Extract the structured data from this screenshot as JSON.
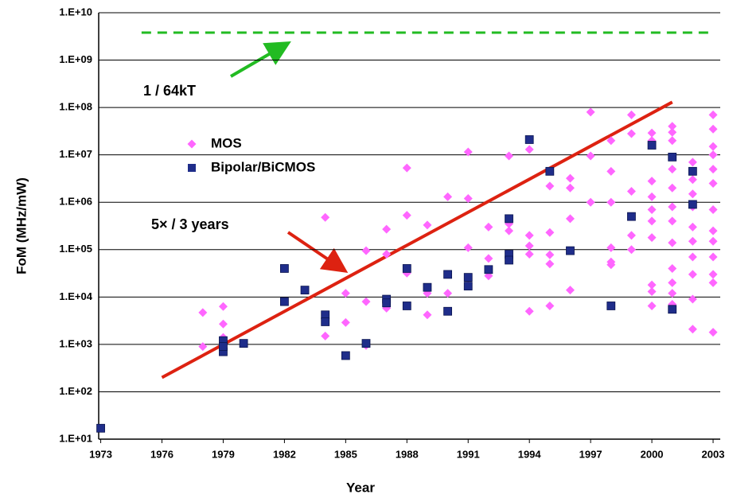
{
  "chart_data": {
    "type": "scatter",
    "xlabel": "Year",
    "ylabel": "FoM (MHz/mW)",
    "xlim": [
      1972.9,
      2003.35
    ],
    "ylim": [
      10,
      10000000000
    ],
    "ylog": true,
    "grid": true,
    "xticks": [
      1973,
      1976,
      1979,
      1982,
      1985,
      1988,
      1991,
      1994,
      1997,
      2000,
      2003
    ],
    "yticks": [
      {
        "value": 10,
        "label": "1.E+01"
      },
      {
        "value": 100,
        "label": "1.E+02"
      },
      {
        "value": 1000,
        "label": "1.E+03"
      },
      {
        "value": 10000,
        "label": "1.E+04"
      },
      {
        "value": 100000,
        "label": "1.E+05"
      },
      {
        "value": 1000000,
        "label": "1.E+06"
      },
      {
        "value": 10000000,
        "label": "1.E+07"
      },
      {
        "value": 100000000,
        "label": "1.E+08"
      },
      {
        "value": 1000000000,
        "label": "1.E+09"
      },
      {
        "value": 10000000000,
        "label": "1.E+10"
      }
    ],
    "series": [
      {
        "name": "MOS",
        "color": "#ff66ff",
        "marker": "diamond",
        "x": [
          1978,
          1978,
          1979,
          1979,
          1979,
          1979,
          1984,
          1984,
          1985,
          1985,
          1986,
          1986,
          1986,
          1987,
          1987,
          1987,
          1988,
          1988,
          1988,
          1988,
          1989,
          1989,
          1989,
          1990,
          1990,
          1991,
          1991,
          1991,
          1991,
          1992,
          1992,
          1992,
          1993,
          1993,
          1993,
          1994,
          1994,
          1994,
          1994,
          1994,
          1995,
          1995,
          1995,
          1995,
          1995,
          1996,
          1996,
          1996,
          1996,
          1997,
          1997,
          1997,
          1998,
          1998,
          1998,
          1998,
          1998,
          1998,
          1998,
          1999,
          1999,
          1999,
          1999,
          1999,
          2000,
          2000,
          2000,
          2000,
          2000,
          2000,
          2000,
          2000,
          2000,
          2000,
          2001,
          2001,
          2001,
          2001,
          2001,
          2001,
          2001,
          2001,
          2001,
          2001,
          2001,
          2001,
          2001,
          2002,
          2002,
          2002,
          2002,
          2002,
          2002,
          2002,
          2002,
          2002,
          2002,
          2003,
          2003,
          2003,
          2003,
          2003,
          2003,
          2003,
          2003,
          2003,
          2003,
          2003,
          2003,
          2003
        ],
        "values": [
          4700,
          900,
          6300,
          2700,
          1400,
          900,
          480000,
          1500,
          12000,
          2900,
          95000,
          8000,
          950,
          270000,
          80000,
          5800,
          5300000,
          530000,
          32000,
          6500,
          330000,
          12000,
          4200,
          1300000,
          12000,
          11500000,
          1200000,
          110000,
          25000,
          300000,
          65000,
          28000,
          9500000,
          350000,
          250000,
          13000000,
          200000,
          120000,
          80000,
          5000,
          2200000,
          230000,
          78000,
          50000,
          6500,
          3200000,
          2000000,
          450000,
          14000,
          80000000,
          9500000,
          1000000,
          20000000,
          4500000,
          1000000,
          110000,
          55000,
          48000,
          6500,
          70000000,
          28000000,
          1700000,
          200000,
          100000,
          29000000,
          20000000,
          2800000,
          1300000,
          700000,
          400000,
          180000,
          18000,
          13000,
          6500,
          40000000,
          30000000,
          20000000,
          9000000,
          5000000,
          2000000,
          800000,
          400000,
          140000,
          40000,
          20000,
          12000,
          7000,
          7000000,
          3000000,
          1500000,
          800000,
          300000,
          150000,
          70000,
          30000,
          9000,
          2100,
          70000000,
          35000000,
          15000000,
          10000000,
          5000000,
          2500000,
          700000,
          250000,
          150000,
          70000,
          30000,
          20000,
          1800
        ]
      },
      {
        "name": "Bipolar/BiCMOS",
        "color": "#1f2d8a",
        "marker": "square",
        "x": [
          1973,
          1979,
          1979,
          1979,
          1980,
          1982,
          1982,
          1983,
          1984,
          1984,
          1985,
          1986,
          1987,
          1987,
          1988,
          1988,
          1989,
          1990,
          1990,
          1991,
          1991,
          1992,
          1993,
          1993,
          1993,
          1994,
          1995,
          1996,
          1998,
          1999,
          2000,
          2001,
          2001,
          2002,
          2002
        ],
        "values": [
          17,
          1200,
          700,
          900,
          1050,
          40000,
          8000,
          14000,
          4200,
          3000,
          580,
          1050,
          9000,
          7500,
          40000,
          6500,
          16000,
          30000,
          5000,
          26000,
          17000,
          38000,
          450000,
          80000,
          60000,
          21000000,
          4500000,
          95000,
          6500,
          500000,
          16000000,
          9000000,
          5500,
          4500000,
          900000
        ]
      }
    ],
    "lines": [
      {
        "color": "#22bb22",
        "dashed": true,
        "x": [
          1975,
          2003
        ],
        "values": [
          3800000000,
          3800000000
        ]
      },
      {
        "color": "#dd2211",
        "dashed": false,
        "x": [
          1976,
          2001
        ],
        "values": [
          200,
          130000000
        ]
      }
    ],
    "annotations": [
      {
        "text": "1 / 64kT",
        "color": "#22bb22"
      },
      {
        "text": "5× / 3 years",
        "color": "#dd2211"
      }
    ]
  }
}
